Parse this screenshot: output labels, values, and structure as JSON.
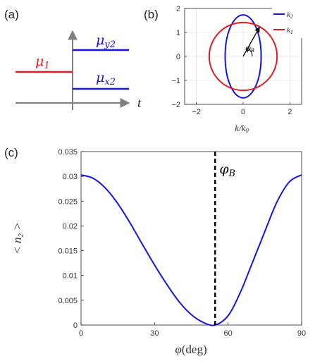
{
  "chart_data": [
    {
      "panel": "(a)",
      "type": "line",
      "xlabel": "t",
      "series": [
        {
          "name": "μ1",
          "label_main": "μ",
          "label_sub": "1",
          "color": "#e31b23",
          "segment": "before t=0",
          "level": 0.45
        },
        {
          "name": "μy2",
          "label_main": "μ",
          "label_sub": "y2",
          "color": "#1414e6",
          "segment": "after t=0",
          "level": 0.75
        },
        {
          "name": "μx2",
          "label_main": "μ",
          "label_sub": "x2",
          "color": "#1414e6",
          "segment": "after t=0",
          "level": 0.2
        }
      ]
    },
    {
      "panel": "(b)",
      "type": "line",
      "xlabel": "k/k0",
      "xlabel_main": "k/k",
      "xlabel_sub": "0",
      "xlim": [
        -2.5,
        2.5
      ],
      "ylim": [
        -2,
        2
      ],
      "xticks": [
        -2,
        0,
        2
      ],
      "yticks": [
        2,
        1,
        0,
        -1,
        -2
      ],
      "grid": true,
      "legend": "top-right",
      "series": [
        {
          "name": "k2",
          "label_main": "k",
          "label_sub": "2",
          "color": "#1414e6",
          "shape": "ellipse",
          "semi_axis_x": 0.77,
          "semi_axis_y": 1.73
        },
        {
          "name": "k1",
          "label_main": "k",
          "label_sub": "1",
          "color": "#e31b23",
          "shape": "circle",
          "radius": 1.45
        }
      ],
      "annotation": {
        "label_main": "φ",
        "label_sub": "B",
        "arrow_to": [
          0.7,
          1.22
        ]
      }
    },
    {
      "panel": "(c)",
      "type": "line",
      "xlabel": "φ(deg)",
      "xlabel_main": "φ",
      "xlabel_rest": "(deg)",
      "ylabel": "< n2 >",
      "ylabel_main": "< n",
      "ylabel_sub": "2",
      "ylabel_end": " >",
      "xlim": [
        0,
        90
      ],
      "ylim": [
        0,
        0.035
      ],
      "xticks": [
        0,
        30,
        60,
        90
      ],
      "yticks": [
        0,
        0.005,
        0.01,
        0.015,
        0.02,
        0.025,
        0.03,
        0.035
      ],
      "ytick_labels": [
        "0",
        "0.005",
        "0.01",
        "0.015",
        "0.02",
        "0.025",
        "0.03",
        "0.035"
      ],
      "grid": false,
      "series": [
        {
          "name": "<n2>",
          "color": "#1414e6",
          "x": [
            0,
            5,
            10,
            15,
            20,
            25,
            30,
            35,
            40,
            45,
            50,
            54.7,
            60,
            65,
            70,
            75,
            80,
            85,
            90
          ],
          "y": [
            0.0303,
            0.0296,
            0.0276,
            0.0245,
            0.0206,
            0.0163,
            0.0121,
            0.0082,
            0.0047,
            0.0021,
            0.0005,
            0.0,
            0.0019,
            0.0066,
            0.0127,
            0.0189,
            0.0249,
            0.0289,
            0.0303
          ]
        }
      ],
      "annotation": {
        "type": "vertical-dashed-line",
        "x": 54.7,
        "color": "#000000",
        "label_main": "φ",
        "label_sub": "B"
      }
    }
  ],
  "panels": {
    "a": "(a)",
    "b": "(b)",
    "c": "(c)"
  }
}
